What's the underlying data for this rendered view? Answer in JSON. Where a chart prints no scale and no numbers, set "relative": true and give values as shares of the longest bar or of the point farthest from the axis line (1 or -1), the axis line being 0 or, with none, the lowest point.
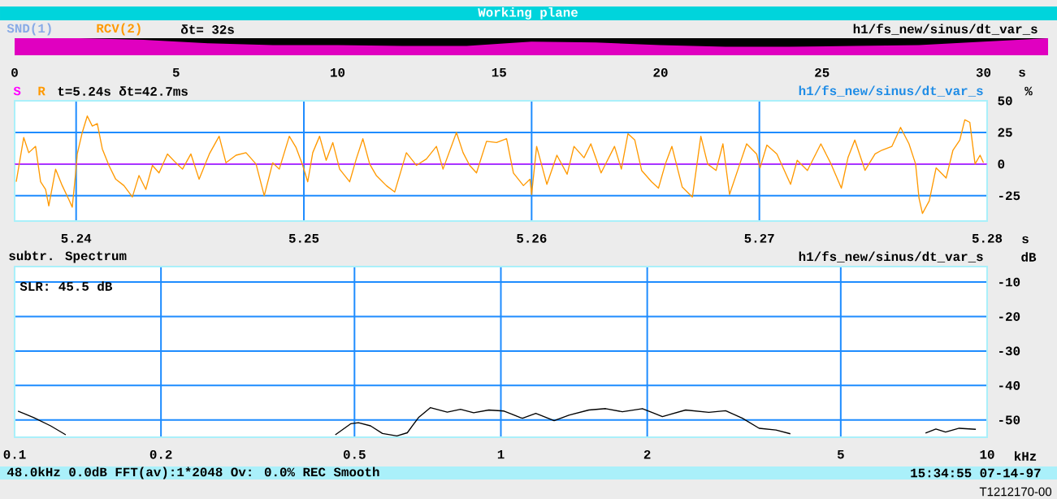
{
  "chart_data": [
    {
      "type": "area",
      "relative": true,
      "title": "Working plane",
      "subtitle": "h1/fs_new/sinus/dt_var_s",
      "annotations": [
        "SND(1)",
        "RCV(2)",
        "δt= 32s"
      ],
      "xlabel": "s",
      "xlim": [
        0,
        32
      ],
      "xticks": [
        0,
        5,
        10,
        15,
        20,
        25,
        30
      ],
      "series": [
        {
          "color": "#e000c0",
          "x": [
            0,
            2,
            4,
            6,
            8,
            10,
            12,
            14,
            16,
            18,
            20,
            22,
            24,
            26,
            28,
            30,
            32
          ],
          "values": [
            1,
            1,
            0.9,
            0.7,
            0.6,
            0.6,
            0.55,
            0.55,
            0.8,
            0.75,
            0.6,
            0.5,
            0.5,
            0.55,
            0.6,
            0.8,
            1
          ]
        }
      ]
    },
    {
      "type": "line",
      "subtitle": "h1/fs_new/sinus/dt_var_s",
      "annotations": [
        "t=5.24s δt=42.7ms"
      ],
      "xlabel": "s",
      "ylabel": "%",
      "xlim": [
        5.2373,
        5.28
      ],
      "ylim": [
        -45,
        50
      ],
      "xticks": [
        5.24,
        5.25,
        5.26,
        5.27,
        5.28
      ],
      "yticks": [
        50,
        25,
        0,
        -25
      ],
      "grid": true,
      "legend": "top left",
      "series": [
        {
          "name": "S",
          "color": "#ff00ff",
          "x": [
            5.2373,
            5.28
          ],
          "values": [
            0,
            0
          ]
        },
        {
          "name": "R",
          "color": "#ff9900",
          "x": [
            5.23737,
            5.2377,
            5.23792,
            5.23822,
            5.23844,
            5.23866,
            5.2388,
            5.2391,
            5.23939,
            5.23968,
            5.23983,
            5.23998,
            5.24005,
            5.24027,
            5.24049,
            5.24071,
            5.24093,
            5.24115,
            5.24144,
            5.24174,
            5.2421,
            5.24247,
            5.24276,
            5.24306,
            5.24335,
            5.24364,
            5.24401,
            5.24438,
            5.24467,
            5.24504,
            5.2454,
            5.24585,
            5.24628,
            5.24658,
            5.24702,
            5.24746,
            5.2479,
            5.24826,
            5.24863,
            5.24892,
            5.24936,
            5.24966,
            5.24995,
            5.25017,
            5.25039,
            5.25069,
            5.25098,
            5.25127,
            5.25157,
            5.25201,
            5.2523,
            5.25259,
            5.25289,
            5.25318,
            5.25362,
            5.25399,
            5.2545,
            5.25494,
            5.25538,
            5.25582,
            5.25611,
            5.2567,
            5.25699,
            5.25728,
            5.25758,
            5.25802,
            5.25846,
            5.2589,
            5.2592,
            5.25964,
            5.25993,
            5.26,
            5.26022,
            5.26067,
            5.26111,
            5.26156,
            5.26186,
            5.2623,
            5.2626,
            5.26305,
            5.26364,
            5.26394,
            5.26423,
            5.26453,
            5.26483,
            5.26527,
            5.26557,
            5.26587,
            5.26616,
            5.26661,
            5.26706,
            5.26743,
            5.26773,
            5.2681,
            5.2684,
            5.26869,
            5.26914,
            5.26944,
            5.26988,
            5.27003,
            5.27033,
            5.27077,
            5.27137,
            5.27166,
            5.27211,
            5.2727,
            5.27315,
            5.2736,
            5.27389,
            5.27419,
            5.27464,
            5.27508,
            5.27538,
            5.27582,
            5.2762,
            5.27657,
            5.27686,
            5.27701,
            5.27716,
            5.27746,
            5.27776,
            5.2782,
            5.2785,
            5.2788,
            5.27902,
            5.27924,
            5.27947,
            5.27969,
            5.27984
          ],
          "values": [
            -14,
            21,
            9,
            14,
            -14,
            -20,
            -33,
            -4,
            -17,
            -28,
            -34,
            -7,
            8,
            25,
            38,
            30,
            32,
            12,
            -1,
            -12,
            -17,
            -26,
            -9,
            -20,
            -1,
            -7,
            8,
            1,
            -4,
            8,
            -12,
            8,
            22,
            1,
            7,
            9,
            0,
            -25,
            1,
            -4,
            22,
            13,
            -1,
            -14,
            9,
            22,
            3,
            17,
            -4,
            -14,
            4,
            20,
            0,
            -9,
            -17,
            -22,
            9,
            -1,
            4,
            14,
            -4,
            25,
            9,
            -1,
            -7,
            18,
            17,
            20,
            -7,
            -17,
            -12,
            -24,
            14,
            -16,
            7,
            -8,
            14,
            5,
            16,
            -7,
            14,
            -4,
            24,
            19,
            -5,
            -14,
            -19,
            0,
            14,
            -18,
            -26,
            22,
            0,
            -5,
            16,
            -24,
            0,
            16,
            8,
            -3,
            15,
            8,
            -16,
            3,
            -5,
            16,
            0,
            -19,
            5,
            19,
            -5,
            8,
            11,
            14,
            29,
            16,
            0,
            -27,
            -39,
            -29,
            -3,
            -11,
            11,
            19,
            35,
            33,
            0,
            7,
            1
          ]
        }
      ]
    },
    {
      "type": "line",
      "title": "subtr. Spectrum",
      "subtitle": "h1/fs_new/sinus/dt_var_s",
      "annotations": [
        "SLR: 45.5 dB",
        "48.0kHz 0.0dB FFT(av):1*2048 Ov: 0.0% REC Smooth",
        "15:34:55 07-14-97",
        "T1212170-00"
      ],
      "xlabel": "kHz",
      "ylabel": "dB",
      "log": "x",
      "xlim": [
        0.1,
        10
      ],
      "ylim": [
        -55,
        -5.5
      ],
      "xticks": [
        0.1,
        0.2,
        0.5,
        1,
        2,
        5,
        10
      ],
      "yticks": [
        -10,
        -20,
        -30,
        -40,
        -50
      ],
      "grid": true,
      "series": [
        {
          "color": "#000000",
          "x": [
            0.1016,
            0.1095,
            0.1186,
            0.1274,
            0.2,
            0.4566,
            0.491,
            0.5095,
            0.5395,
            0.5708,
            0.6112,
            0.6421,
            0.677,
            0.7166,
            0.776,
            0.826,
            0.879,
            0.9447,
            1.015,
            1.097,
            1.108,
            1.18,
            1.287,
            1.38,
            1.517,
            1.643,
            1.778,
            1.955,
            2.149,
            2.399,
            2.677,
            2.899,
            3.139,
            3.398,
            3.68,
            3.939,
            5.5,
            7.47,
            7.848,
            8.214,
            8.76,
            9.48
          ],
          "values": [
            -47.4,
            -49.3,
            -51.7,
            -54.3,
            null,
            -54.3,
            -51.1,
            -50.8,
            -51.7,
            -53.9,
            -54.6,
            -53.7,
            -49.3,
            -46.4,
            -47.7,
            -46.9,
            -47.9,
            -47.1,
            -47.4,
            -49.3,
            -49.5,
            -48.1,
            -50.2,
            -48.6,
            -47.1,
            -46.7,
            -47.6,
            -46.7,
            -49.0,
            -47.1,
            -47.8,
            -47.3,
            -49.5,
            -52.4,
            -52.9,
            -54.0,
            null,
            -53.8,
            -52.6,
            -53.5,
            -52.4,
            -52.7
          ]
        }
      ]
    }
  ]
}
